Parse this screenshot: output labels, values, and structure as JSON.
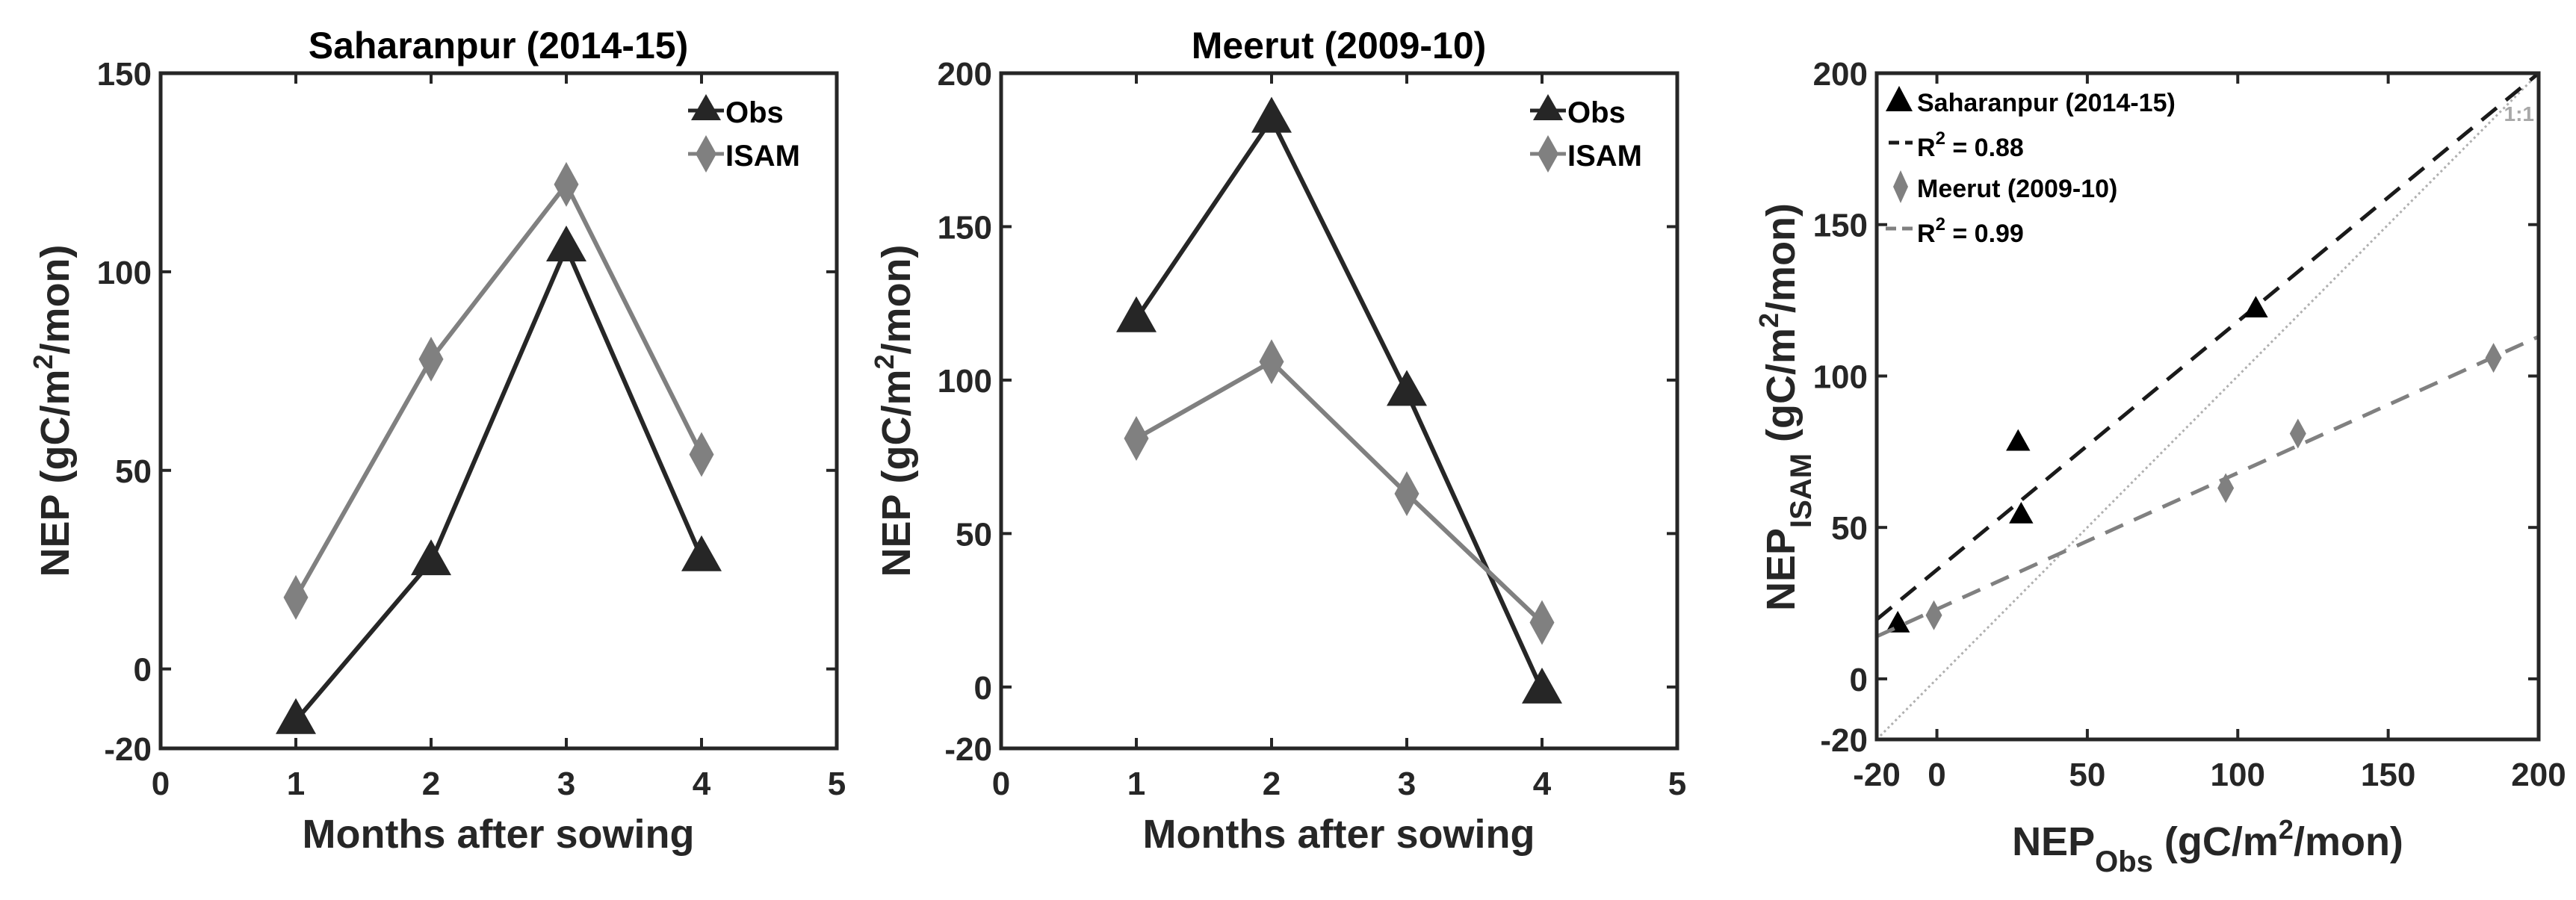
{
  "chart_data": [
    {
      "type": "line",
      "title": "Saharanpur (2014-15)",
      "xlabel": "Months after sowing",
      "ylabel": "NEP (gC/m²/mon)",
      "ylabel_parts": {
        "main": "NEP (gC/m",
        "sup": "2",
        "tail": "/mon)"
      },
      "xlim": [
        0,
        5
      ],
      "ylim": [
        -20,
        150
      ],
      "xticks": [
        0,
        1,
        2,
        3,
        4,
        5
      ],
      "yticks": [
        -20,
        0,
        50,
        100,
        150
      ],
      "x": [
        1,
        2,
        3,
        4
      ],
      "series": [
        {
          "name": "Obs",
          "marker": "triangle",
          "color": "#262626",
          "values": [
            -13,
            27,
            106,
            28
          ]
        },
        {
          "name": "ISAM",
          "marker": "diamond",
          "color": "#808080",
          "values": [
            18,
            78,
            122,
            54
          ]
        }
      ],
      "legend": "top-right",
      "grid": false
    },
    {
      "type": "line",
      "title": "Meerut (2009-10)",
      "xlabel": "Months after sowing",
      "ylabel": "NEP (gC/m²/mon)",
      "ylabel_parts": {
        "main": "NEP (gC/m",
        "sup": "2",
        "tail": "/mon)"
      },
      "xlim": [
        0,
        5
      ],
      "ylim": [
        -20,
        200
      ],
      "xticks": [
        0,
        1,
        2,
        3,
        4,
        5
      ],
      "yticks": [
        -20,
        0,
        50,
        100,
        150,
        200
      ],
      "x": [
        1,
        2,
        3,
        4
      ],
      "series": [
        {
          "name": "Obs",
          "marker": "triangle",
          "color": "#262626",
          "values": [
            120,
            185,
            96,
            -1
          ]
        },
        {
          "name": "ISAM",
          "marker": "diamond",
          "color": "#808080",
          "values": [
            81,
            106,
            63,
            21
          ]
        }
      ],
      "legend": "top-right",
      "grid": false
    },
    {
      "type": "scatter",
      "title": "",
      "xlabel": "NEP_Obs (gC/m²/mon)",
      "xlabel_parts": {
        "main": "NEP",
        "sub": "Obs",
        "mid": " (gC/m",
        "sup": "2",
        "tail": "/mon)"
      },
      "ylabel": "NEP_ISAM (gC/m²/mon)",
      "ylabel_parts": {
        "main": "NEP",
        "sub": "ISAM",
        "mid": " (gC/m",
        "sup": "2",
        "tail": "/mon)"
      },
      "xlim": [
        -20,
        200
      ],
      "ylim": [
        -20,
        200
      ],
      "xticks": [
        -20,
        0,
        50,
        100,
        150,
        200
      ],
      "yticks": [
        -20,
        0,
        50,
        100,
        150,
        200
      ],
      "series": [
        {
          "name": "Saharanpur (2014-15)",
          "marker": "triangle",
          "color": "#000000",
          "points": [
            [
              -13,
              18
            ],
            [
              27,
              78
            ],
            [
              106,
              122
            ],
            [
              28,
              54
            ]
          ],
          "fit": {
            "label": "R² = 0.88",
            "r2_prefix": "R",
            "r2_sup": "2",
            "r2_value": " = 0.88",
            "slope": 0.82,
            "intercept": 36,
            "color": "#1a1a1a"
          }
        },
        {
          "name": "Meerut (2009-10)",
          "marker": "diamond",
          "color": "#808080",
          "points": [
            [
              120,
              81
            ],
            [
              185,
              106
            ],
            [
              96,
              63
            ],
            [
              -1,
              21
            ]
          ],
          "fit": {
            "label": "R² = 0.99",
            "r2_prefix": "R",
            "r2_sup": "2",
            "r2_value": " = 0.99",
            "slope": 0.45,
            "intercept": 23,
            "color": "#808080"
          }
        }
      ],
      "reference_line": {
        "label": "1:1",
        "color": "#b0b0b0"
      },
      "legend": "top-left",
      "grid": false
    }
  ]
}
